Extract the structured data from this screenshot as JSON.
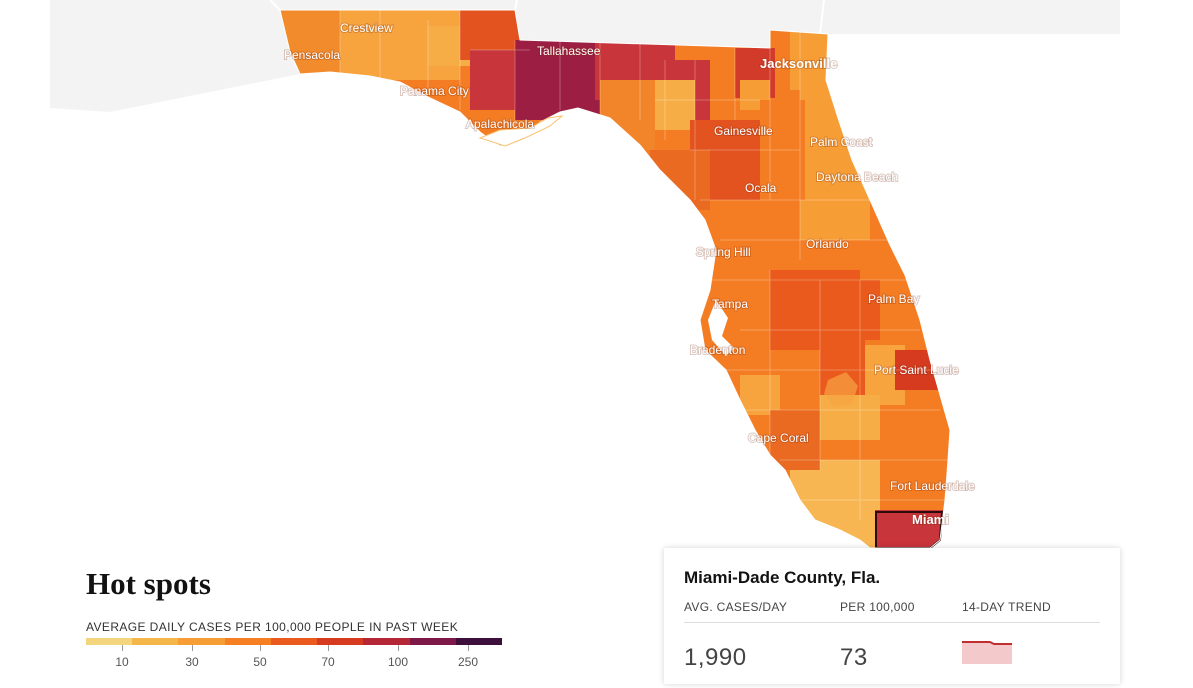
{
  "map": {
    "cities": [
      "Crestview",
      "Pensacola",
      "Panama City",
      "Apalachicola",
      "Tallahassee",
      "Jacksonville",
      "Gainesville",
      "Palm Coast",
      "Daytona Beach",
      "Ocala",
      "Orlando",
      "Spring Hill",
      "Tampa",
      "Palm Bay",
      "Bradenton",
      "Port Saint Lucie",
      "Cape Coral",
      "Fort Lauderdale",
      "Miami"
    ],
    "highlighted_county": "Miami-Dade County, Fla."
  },
  "legend": {
    "title": "Hot spots",
    "subtitle": "AVERAGE DAILY CASES PER 100,000 PEOPLE IN PAST WEEK",
    "colors": [
      "#f2d57c",
      "#f5b649",
      "#f79d35",
      "#f57f22",
      "#ea5a1c",
      "#d63a1f",
      "#b52637",
      "#7d1848",
      "#3d0f3b"
    ],
    "ticks": [
      "10",
      "30",
      "50",
      "70",
      "100",
      "250"
    ]
  },
  "card": {
    "title": "Miami-Dade County, Fla.",
    "headers": {
      "cases": "AVG. CASES/DAY",
      "per100k": "PER 100,000",
      "trend": "14-DAY TREND"
    },
    "values": {
      "cases": "1,990",
      "per100k": "73"
    },
    "trend_color": "#c22d30",
    "trend_fill": "#f3c9cb"
  }
}
